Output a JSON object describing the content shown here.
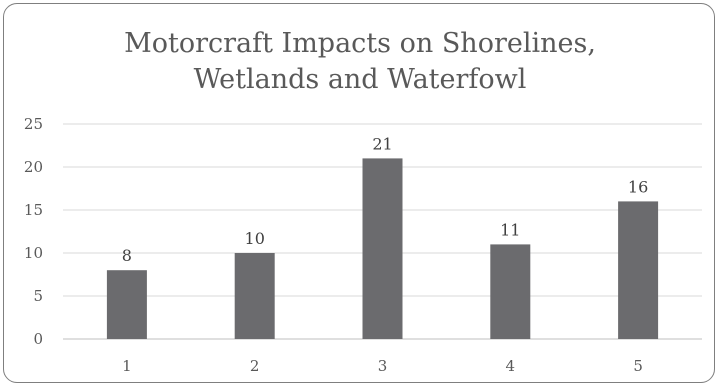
{
  "chart_data": {
    "type": "bar",
    "title_lines": [
      "Motorcraft Impacts on Shorelines,",
      "Wetlands and Waterfowl"
    ],
    "categories": [
      "1",
      "2",
      "3",
      "4",
      "5"
    ],
    "values": [
      8,
      10,
      21,
      11,
      16
    ],
    "data_labels": [
      "8",
      "10",
      "21",
      "11",
      "16"
    ],
    "xlabel": "",
    "ylabel": "",
    "ylim": [
      0,
      25
    ],
    "yticks": [
      "0",
      "5",
      "10",
      "15",
      "20",
      "25"
    ],
    "grid": true,
    "legend": "none",
    "colors": {
      "bar": "#6b6b6e",
      "grid": "#d9d9d9",
      "axis": "#bfbfbf",
      "text": "#595959"
    }
  }
}
